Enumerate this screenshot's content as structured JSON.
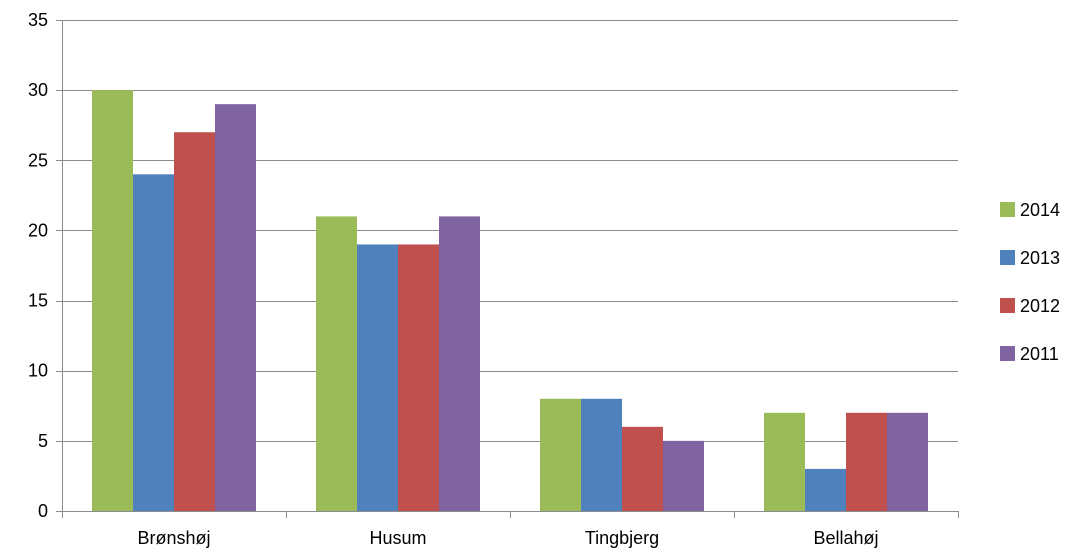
{
  "chart_data": {
    "type": "bar",
    "title": "",
    "xlabel": "",
    "ylabel": "",
    "categories": [
      "Brønshøj",
      "Husum",
      "Tingbjerg",
      "Bellahøj"
    ],
    "series": [
      {
        "name": "2014",
        "color": "#9BBB59",
        "values": [
          30,
          21,
          8,
          7
        ]
      },
      {
        "name": "2013",
        "color": "#4F81BD",
        "values": [
          24,
          19,
          8,
          3
        ]
      },
      {
        "name": "2012",
        "color": "#C0504D",
        "values": [
          27,
          19,
          6,
          7
        ]
      },
      {
        "name": "2011",
        "color": "#8064A2",
        "values": [
          29,
          21,
          5,
          7
        ]
      }
    ],
    "ylim": [
      0,
      35
    ],
    "yticks": [
      0,
      5,
      10,
      15,
      20,
      25,
      30,
      35
    ],
    "grid": true,
    "legend_position": "right"
  }
}
